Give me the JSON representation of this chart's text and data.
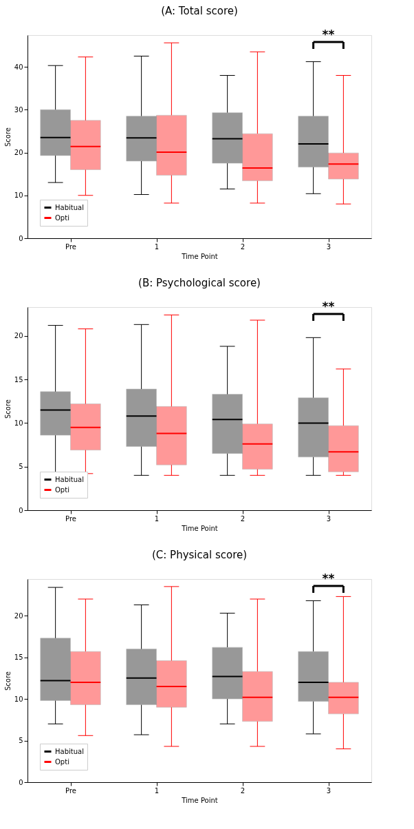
{
  "chart_data": [
    {
      "type": "box",
      "title": "(A: Total score)",
      "xlabel": "Time Point",
      "ylabel": "Score",
      "categories": [
        "Pre",
        "1",
        "2",
        "3"
      ],
      "ylim": [
        0,
        47.4
      ],
      "yticks": [
        0,
        10,
        20,
        30,
        40
      ],
      "grid": false,
      "legend": "bottom left",
      "annotations": [
        "**"
      ],
      "series": [
        {
          "name": "Habitual",
          "color": "#000000",
          "boxes": [
            {
              "low": 13,
              "q1": 19.3,
              "median": 23.5,
              "q3": 30,
              "high": 40.3
            },
            {
              "low": 10.2,
              "q1": 18,
              "median": 23.4,
              "q3": 28.5,
              "high": 42.5
            },
            {
              "low": 11.5,
              "q1": 17.5,
              "median": 23.2,
              "q3": 29.3,
              "high": 38
            },
            {
              "low": 10.4,
              "q1": 16.6,
              "median": 22,
              "q3": 28.5,
              "high": 41.2
            }
          ]
        },
        {
          "name": "Opti",
          "color": "#ff0000",
          "boxes": [
            {
              "low": 10,
              "q1": 16,
              "median": 21.4,
              "q3": 27.5,
              "high": 42.3
            },
            {
              "low": 8.2,
              "q1": 14.7,
              "median": 20.1,
              "q3": 28.7,
              "high": 45.6
            },
            {
              "low": 8.2,
              "q1": 13.4,
              "median": 16.4,
              "q3": 24.4,
              "high": 43.5
            },
            {
              "low": 8,
              "q1": 13.8,
              "median": 17.3,
              "q3": 19.9,
              "high": 38
            }
          ]
        }
      ]
    },
    {
      "type": "box",
      "title": "(B: Psychological score)",
      "xlabel": "Time Point",
      "ylabel": "Score",
      "categories": [
        "Pre",
        "1",
        "2",
        "3"
      ],
      "ylim": [
        0,
        23.3
      ],
      "yticks": [
        0,
        5,
        10,
        15,
        20
      ],
      "grid": false,
      "legend": "bottom left",
      "annotations": [
        "**"
      ],
      "series": [
        {
          "name": "Habitual",
          "color": "#000000",
          "boxes": [
            {
              "low": 4.3,
              "q1": 8.6,
              "median": 11.5,
              "q3": 13.6,
              "high": 21.2
            },
            {
              "low": 4,
              "q1": 7.3,
              "median": 10.8,
              "q3": 13.9,
              "high": 21.3
            },
            {
              "low": 4,
              "q1": 6.5,
              "median": 10.4,
              "q3": 13.3,
              "high": 18.8
            },
            {
              "low": 4,
              "q1": 6.1,
              "median": 10,
              "q3": 12.9,
              "high": 19.8
            }
          ]
        },
        {
          "name": "Opti",
          "color": "#ff0000",
          "boxes": [
            {
              "low": 4.2,
              "q1": 6.9,
              "median": 9.5,
              "q3": 12.2,
              "high": 20.8
            },
            {
              "low": 4,
              "q1": 5.2,
              "median": 8.8,
              "q3": 11.9,
              "high": 22.4
            },
            {
              "low": 4,
              "q1": 4.7,
              "median": 7.6,
              "q3": 9.9,
              "high": 21.8
            },
            {
              "low": 4,
              "q1": 4.4,
              "median": 6.7,
              "q3": 9.7,
              "high": 16.2
            }
          ]
        }
      ]
    },
    {
      "type": "box",
      "title": "(C: Physical score)",
      "xlabel": "Time Point",
      "ylabel": "Score",
      "categories": [
        "Pre",
        "1",
        "2",
        "3"
      ],
      "ylim": [
        0,
        24.4
      ],
      "yticks": [
        0,
        5,
        10,
        15,
        20
      ],
      "grid": false,
      "legend": "bottom left",
      "annotations": [
        "**"
      ],
      "series": [
        {
          "name": "Habitual",
          "color": "#000000",
          "boxes": [
            {
              "low": 7,
              "q1": 9.8,
              "median": 12.2,
              "q3": 17.3,
              "high": 23.4
            },
            {
              "low": 5.7,
              "q1": 9.3,
              "median": 12.5,
              "q3": 16,
              "high": 21.3
            },
            {
              "low": 7,
              "q1": 10,
              "median": 12.7,
              "q3": 16.2,
              "high": 20.3
            },
            {
              "low": 5.8,
              "q1": 9.7,
              "median": 12,
              "q3": 15.7,
              "high": 21.8
            }
          ]
        },
        {
          "name": "Opti",
          "color": "#ff0000",
          "boxes": [
            {
              "low": 5.6,
              "q1": 9.3,
              "median": 12,
              "q3": 15.7,
              "high": 22
            },
            {
              "low": 4.3,
              "q1": 9,
              "median": 11.5,
              "q3": 14.6,
              "high": 23.5
            },
            {
              "low": 4.3,
              "q1": 7.3,
              "median": 10.2,
              "q3": 13.3,
              "high": 22
            },
            {
              "low": 4,
              "q1": 8.2,
              "median": 10.2,
              "q3": 12,
              "high": 22.3
            }
          ]
        }
      ]
    }
  ]
}
